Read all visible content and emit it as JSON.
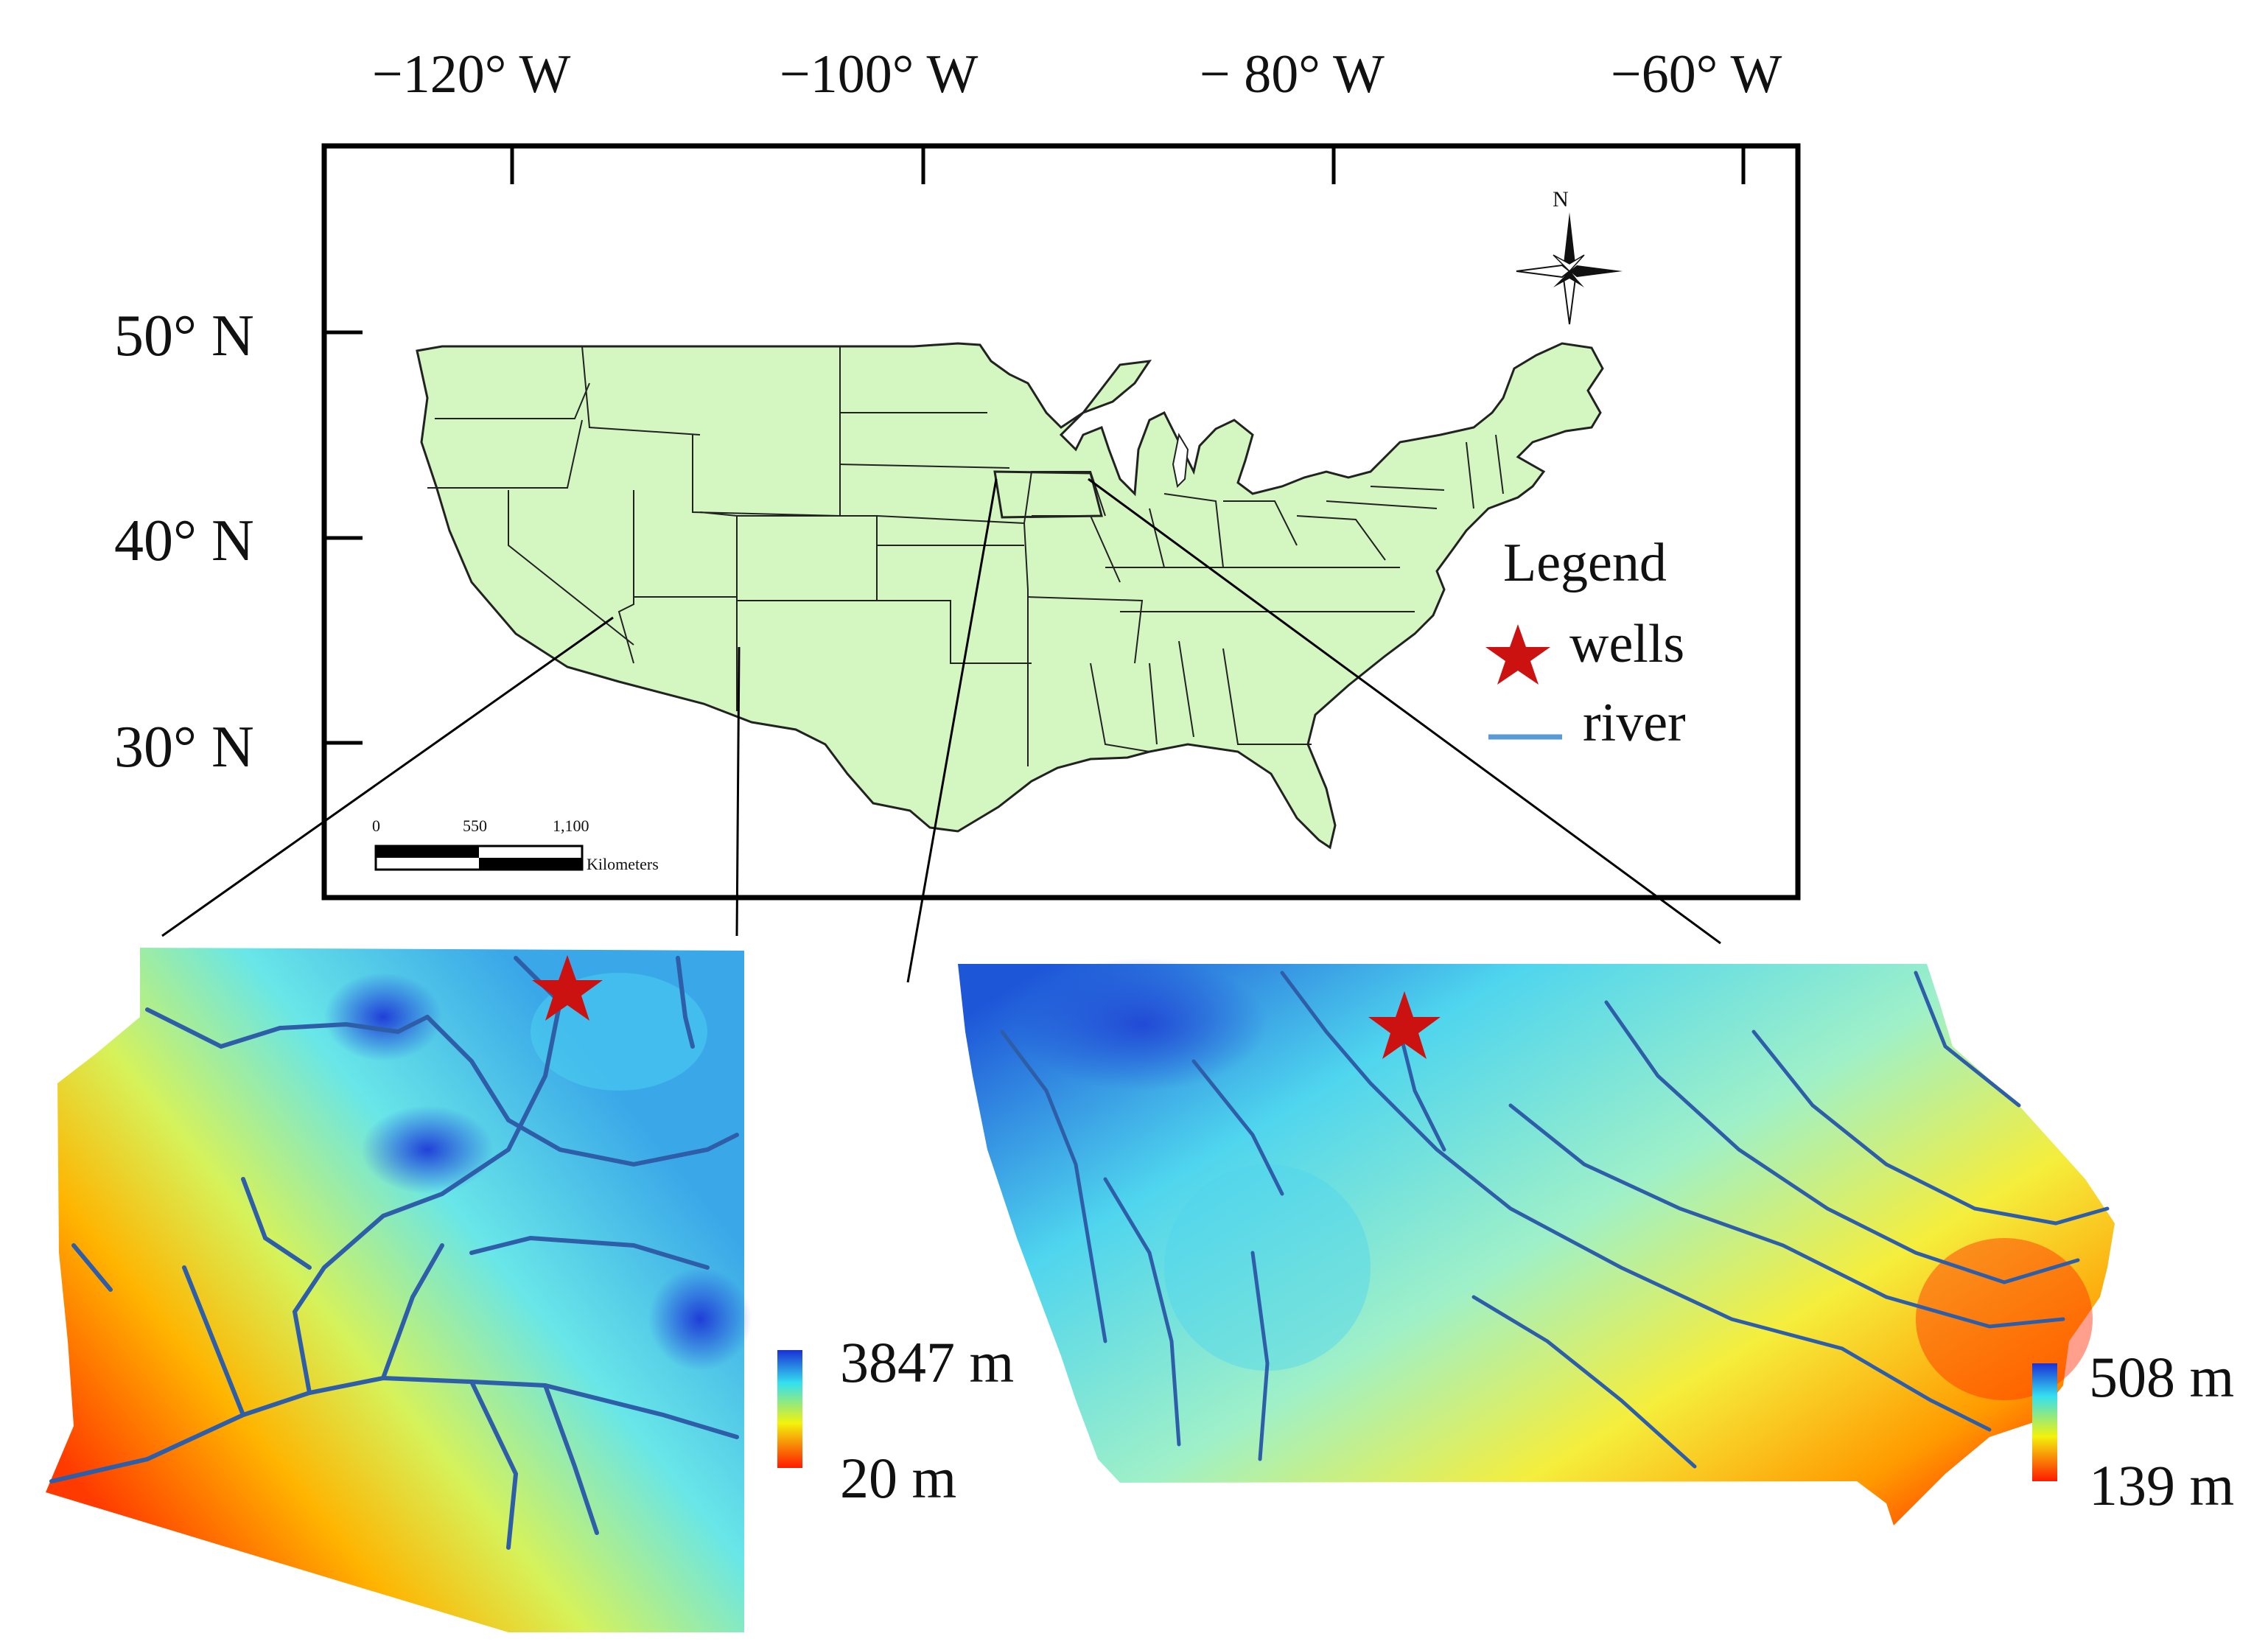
{
  "figure": {
    "longitude_labels": [
      "−120° W",
      "−100° W",
      "− 80° W",
      "−60° W"
    ],
    "latitude_labels": [
      "50° N",
      "40° N",
      "30° N"
    ],
    "north_arrow_label": "N",
    "legend": {
      "title": "Legend",
      "items": [
        {
          "label": "wells",
          "symbol": "star-icon",
          "color": "#cc1111"
        },
        {
          "label": "river",
          "symbol": "line",
          "color": "#5b9bd5"
        }
      ]
    },
    "scale_bar": {
      "ticks": [
        "0",
        "550",
        "1,100"
      ],
      "unit": "Kilometers"
    },
    "inset_arizona": {
      "colorbar_max": "3847 m",
      "colorbar_min": "20 m"
    },
    "inset_iowa": {
      "colorbar_max": "508 m",
      "colorbar_min": "139 m"
    },
    "colors": {
      "land": "#d4f7c1",
      "elevation_high": "#1a2fd6",
      "elevation_mid": "#34e0f0",
      "elevation_low": "#ff1a00",
      "river": "#2f5ea8",
      "well": "#cc1111"
    }
  }
}
